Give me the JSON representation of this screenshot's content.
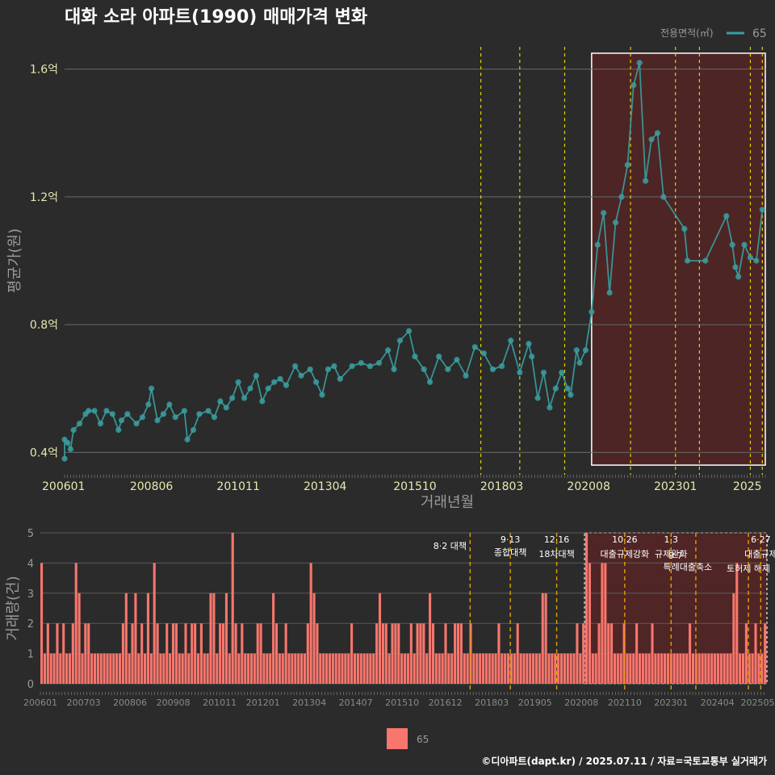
{
  "title": "대화 소라 아파트(1990) 매매가격 변화",
  "colors": {
    "background": "#2b2b2b",
    "line": "#3a9ea0",
    "bar": "#f8766d",
    "highlight": "#5a2424",
    "policy": "#e0d000",
    "policy_bottom": "#e0a000",
    "outlier": "#ff2020"
  },
  "legend_top": {
    "title": "전용면적(㎡)",
    "item": "65"
  },
  "legend_bottom": {
    "item": "65"
  },
  "footer": "©디아파트(dapt.kr) / 2025.07.11 / 자료=국토교통부 실거래가",
  "chart_data": [
    {
      "type": "line",
      "title": "대화 소라 아파트(1990) 매매가격 변화",
      "xlabel": "거래년월",
      "ylabel": "평균가(원)",
      "x_ticks": [
        "200601",
        "200806",
        "201011",
        "201304",
        "201510",
        "201803",
        "202008",
        "202301",
        "2025"
      ],
      "y_ticks": [
        "0.4억",
        "0.8억",
        "1.2억",
        "1.6억"
      ],
      "y_tick_values": [
        0.4,
        0.8,
        1.2,
        1.6
      ],
      "ylim": [
        0.33,
        1.67
      ],
      "x_range": [
        "2006-01",
        "2025-07"
      ],
      "policy_lines": [
        "2017-08",
        "2018-09",
        "2019-12",
        "2021-10",
        "2023-01",
        "2023-09",
        "2025-02",
        "2025-06"
      ],
      "highlight_range": [
        "2020-09",
        "2025-07"
      ],
      "highlight_y": [
        0.36,
        1.65
      ],
      "series": [
        {
          "name": "65",
          "points": [
            [
              "2006-01",
              0.38
            ],
            [
              "2006-01",
              0.44
            ],
            [
              "2006-02",
              0.43
            ],
            [
              "2006-03",
              0.41
            ],
            [
              "2006-04",
              0.47
            ],
            [
              "2006-06",
              0.49
            ],
            [
              "2006-08",
              0.52
            ],
            [
              "2006-09",
              0.53
            ],
            [
              "2006-11",
              0.53
            ],
            [
              "2007-01",
              0.49
            ],
            [
              "2007-03",
              0.53
            ],
            [
              "2007-05",
              0.52
            ],
            [
              "2007-07",
              0.47
            ],
            [
              "2007-08",
              0.5
            ],
            [
              "2007-10",
              0.52
            ],
            [
              "2008-01",
              0.49
            ],
            [
              "2008-03",
              0.51
            ],
            [
              "2008-05",
              0.55
            ],
            [
              "2008-06",
              0.6
            ],
            [
              "2008-08",
              0.5
            ],
            [
              "2008-10",
              0.52
            ],
            [
              "2008-12",
              0.55
            ],
            [
              "2009-02",
              0.51
            ],
            [
              "2009-05",
              0.53
            ],
            [
              "2009-06",
              0.44
            ],
            [
              "2009-08",
              0.47
            ],
            [
              "2009-10",
              0.52
            ],
            [
              "2010-01",
              0.53
            ],
            [
              "2010-03",
              0.51
            ],
            [
              "2010-05",
              0.56
            ],
            [
              "2010-07",
              0.54
            ],
            [
              "2010-09",
              0.57
            ],
            [
              "2010-11",
              0.62
            ],
            [
              "2011-01",
              0.57
            ],
            [
              "2011-03",
              0.6
            ],
            [
              "2011-05",
              0.64
            ],
            [
              "2011-07",
              0.56
            ],
            [
              "2011-09",
              0.6
            ],
            [
              "2011-11",
              0.62
            ],
            [
              "2012-01",
              0.63
            ],
            [
              "2012-03",
              0.61
            ],
            [
              "2012-06",
              0.67
            ],
            [
              "2012-08",
              0.64
            ],
            [
              "2012-11",
              0.66
            ],
            [
              "2013-01",
              0.62
            ],
            [
              "2013-03",
              0.58
            ],
            [
              "2013-05",
              0.66
            ],
            [
              "2013-07",
              0.67
            ],
            [
              "2013-09",
              0.63
            ],
            [
              "2014-01",
              0.67
            ],
            [
              "2014-04",
              0.68
            ],
            [
              "2014-07",
              0.67
            ],
            [
              "2014-10",
              0.68
            ],
            [
              "2015-01",
              0.72
            ],
            [
              "2015-03",
              0.66
            ],
            [
              "2015-05",
              0.75
            ],
            [
              "2015-08",
              0.78
            ],
            [
              "2015-10",
              0.7
            ],
            [
              "2016-01",
              0.66
            ],
            [
              "2016-03",
              0.62
            ],
            [
              "2016-06",
              0.7
            ],
            [
              "2016-09",
              0.66
            ],
            [
              "2016-12",
              0.69
            ],
            [
              "2017-03",
              0.64
            ],
            [
              "2017-06",
              0.73
            ],
            [
              "2017-09",
              0.71
            ],
            [
              "2017-12",
              0.66
            ],
            [
              "2018-03",
              0.67
            ],
            [
              "2018-06",
              0.75
            ],
            [
              "2018-09",
              0.65
            ],
            [
              "2018-12",
              0.74
            ],
            [
              "2019-01",
              0.7
            ],
            [
              "2019-03",
              0.57
            ],
            [
              "2019-05",
              0.65
            ],
            [
              "2019-07",
              0.54
            ],
            [
              "2019-09",
              0.6
            ],
            [
              "2019-11",
              0.65
            ],
            [
              "2020-01",
              0.6
            ],
            [
              "2020-02",
              0.58
            ],
            [
              "2020-04",
              0.72
            ],
            [
              "2020-05",
              0.68
            ],
            [
              "2020-07",
              0.72
            ],
            [
              "2020-09",
              0.84
            ],
            [
              "2020-11",
              1.05
            ],
            [
              "2021-01",
              1.15
            ],
            [
              "2021-03",
              0.9
            ],
            [
              "2021-05",
              1.12
            ],
            [
              "2021-07",
              1.2
            ],
            [
              "2021-09",
              1.3
            ],
            [
              "2021-11",
              1.55
            ],
            [
              "2022-01",
              1.62
            ],
            [
              "2022-03",
              1.25
            ],
            [
              "2022-05",
              1.38
            ],
            [
              "2022-07",
              1.4
            ],
            [
              "2022-09",
              1.2
            ],
            [
              "2023-04",
              1.1
            ],
            [
              "2023-05",
              1.0
            ],
            [
              "2023-11",
              1.0
            ],
            [
              "2024-06",
              1.14
            ],
            [
              "2024-08",
              1.05
            ],
            [
              "2024-09",
              0.98
            ],
            [
              "2024-10",
              0.95
            ],
            [
              "2024-12",
              1.05
            ],
            [
              "2025-02",
              1.01
            ],
            [
              "2025-04",
              1.0
            ],
            [
              "2025-06",
              1.16
            ]
          ]
        }
      ]
    },
    {
      "type": "bar",
      "xlabel": "",
      "ylabel": "거래량(건)",
      "y_ticks": [
        "0",
        "1",
        "2",
        "3",
        "4",
        "5"
      ],
      "ylim": [
        0,
        5
      ],
      "x_ticks": [
        "200601",
        "200703",
        "200806",
        "200908",
        "201011",
        "201201",
        "201304",
        "201407",
        "201510",
        "201612",
        "201803",
        "201905",
        "202008",
        "202110",
        "202301",
        "202404",
        "202505"
      ],
      "series": [
        {
          "name": "65",
          "values": [
            4,
            1,
            2,
            1,
            1,
            2,
            1,
            2,
            1,
            1,
            2,
            4,
            3,
            1,
            2,
            2,
            1,
            1,
            1,
            1,
            1,
            1,
            1,
            1,
            1,
            1,
            2,
            3,
            1,
            2,
            3,
            1,
            2,
            1,
            3,
            1,
            4,
            2,
            1,
            1,
            2,
            1,
            2,
            2,
            1,
            1,
            2,
            1,
            2,
            2,
            1,
            2,
            1,
            1,
            3,
            3,
            1,
            2,
            2,
            3,
            1,
            5,
            2,
            1,
            2,
            1,
            1,
            1,
            1,
            2,
            2,
            1,
            1,
            1,
            3,
            2,
            1,
            1,
            2,
            1,
            1,
            1,
            1,
            1,
            1,
            2,
            4,
            3,
            2,
            1,
            1,
            1,
            1,
            1,
            1,
            1,
            1,
            1,
            1,
            2,
            1,
            1,
            1,
            1,
            1,
            1,
            1,
            2,
            3,
            2,
            2,
            1,
            2,
            2,
            2,
            1,
            1,
            1,
            2,
            1,
            2,
            2,
            2,
            1,
            3,
            2,
            1,
            1,
            1,
            2,
            1,
            1,
            2,
            2,
            2,
            1,
            1,
            2,
            1,
            1,
            1,
            1,
            1,
            1,
            1,
            1,
            2,
            1,
            1,
            1,
            1,
            1,
            2,
            1,
            1,
            1,
            1,
            1,
            1,
            1,
            3,
            3,
            1,
            1,
            1,
            1,
            1,
            1,
            1,
            1,
            1,
            2,
            1,
            2,
            5,
            4,
            1,
            1,
            2,
            4,
            4,
            2,
            2,
            1,
            1,
            1,
            2,
            1,
            1,
            1,
            2,
            1,
            1,
            1,
            1,
            2,
            1,
            1,
            1,
            1,
            1,
            1,
            1,
            1,
            1,
            1,
            1,
            2,
            1,
            1,
            1,
            1,
            1,
            1,
            1,
            1,
            1,
            1,
            1,
            1,
            1,
            3,
            4,
            1,
            1,
            2,
            1,
            1,
            2,
            1,
            1,
            2
          ]
        }
      ],
      "policy_events": [
        {
          "date": "2017-08",
          "label": "8·2 대책"
        },
        {
          "date": "2018-09",
          "label": "9·13",
          "label2": "종합대책"
        },
        {
          "date": "2019-12",
          "label": "12·16",
          "label2": "18차대책"
        },
        {
          "date": "2021-10",
          "label": "10·26",
          "label2": "대출규제강화"
        },
        {
          "date": "2023-01",
          "label": "1·3",
          "label2": "규제완화"
        },
        {
          "date": "2023-09",
          "label": "9·7",
          "label2": "특례대출축소"
        },
        {
          "date": "2025-02",
          "label": "토허제 해제"
        },
        {
          "date": "2025-06",
          "label": "6·27",
          "label2": "대출규제"
        }
      ]
    }
  ]
}
